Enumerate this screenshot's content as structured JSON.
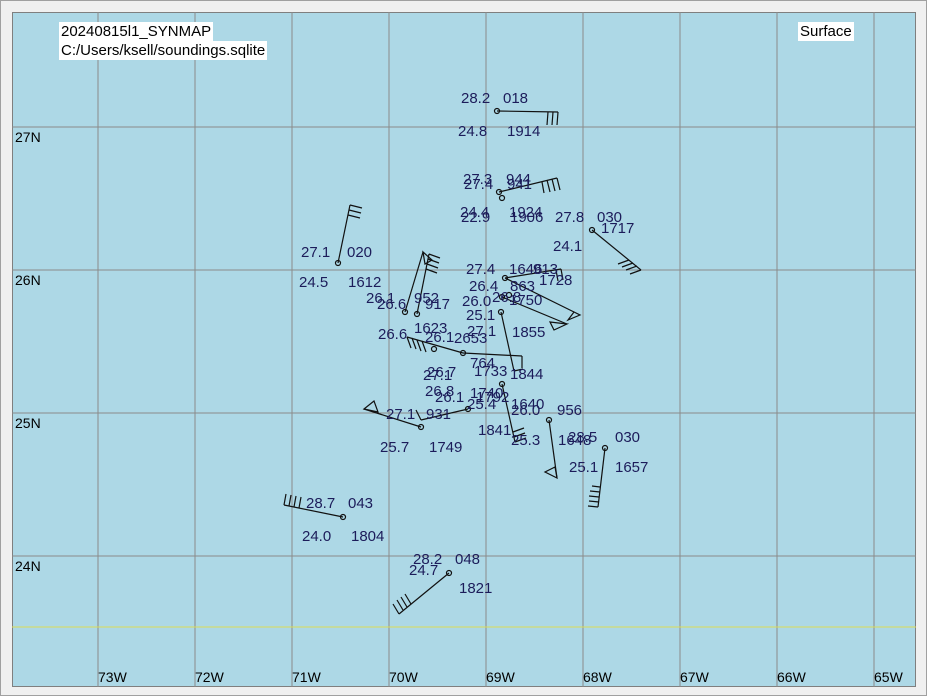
{
  "header": {
    "run_title": "20240815l1_SYNMAP",
    "source": "C:/Users/ksell/soundings.sqlite",
    "level": "Surface"
  },
  "map": {
    "lon_labels": [
      "73W",
      "72W",
      "71W",
      "70W",
      "69W",
      "68W",
      "67W",
      "66W",
      "65W"
    ],
    "lat_labels": [
      "27N",
      "26N",
      "25N",
      "24N"
    ],
    "colors": {
      "background": "#add8e6",
      "grid": "#8a8a8a",
      "equator_line": "#dcdc55",
      "text": "#1c1c5a"
    }
  },
  "stations": [
    {
      "name": "s1",
      "temp": "28.2",
      "pres": "018",
      "dew": "24.8",
      "time": "1914"
    },
    {
      "name": "s2",
      "temp": "27.3",
      "pres": "944",
      "dew": "24.4",
      "time": "1924"
    },
    {
      "name": "s3",
      "temp": "27.4",
      "pres": "941",
      "dew": "22.9",
      "time": "1906"
    },
    {
      "name": "s4",
      "temp": "27.8",
      "pres": "030",
      "dew": "24.1",
      "time": "1717"
    },
    {
      "name": "s5",
      "temp": "27.1",
      "pres": "020",
      "dew": "24.5",
      "time": "1612"
    },
    {
      "name": "s6",
      "temp": "27.4",
      "pres": "913",
      "dew": "26.4",
      "time": "1728"
    },
    {
      "name": "s7",
      "temp": "26.1",
      "pres": "952",
      "dew": "26.6",
      "time": "917"
    },
    {
      "name": "s8",
      "temp": "26.6",
      "pres": "1623",
      "dew": "25.1",
      "time": "1855"
    },
    {
      "name": "s9",
      "temp": "26.8",
      "pres": "1740",
      "dew": "26.1",
      "time": "1640"
    },
    {
      "name": "s10",
      "temp": "27.1",
      "pres": "931",
      "dew": "25.7",
      "time": "1749"
    },
    {
      "name": "s11",
      "temp": "26.0",
      "pres": "956",
      "dew": "25.3",
      "time": "1841"
    },
    {
      "name": "s12",
      "temp": "28.5",
      "pres": "030",
      "dew": "25.1",
      "time": "1657"
    },
    {
      "name": "s13",
      "temp": "28.7",
      "pres": "043",
      "dew": "24.0",
      "time": "1804"
    },
    {
      "name": "s14",
      "temp": "28.2",
      "pres": "048",
      "dew": "24.7",
      "time": "1821"
    }
  ],
  "overlap_labels": [
    {
      "name": "o1",
      "text": "1646"
    },
    {
      "name": "o2",
      "text": "863"
    },
    {
      "name": "o3",
      "text": "26.0"
    },
    {
      "name": "o4",
      "text": "1750"
    },
    {
      "name": "o5",
      "text": "26.8"
    },
    {
      "name": "o6",
      "text": "27.1"
    },
    {
      "name": "o7",
      "text": "764"
    },
    {
      "name": "o8",
      "text": "1844"
    },
    {
      "name": "o9",
      "text": "27.1"
    },
    {
      "name": "o10",
      "text": "1733"
    },
    {
      "name": "o11",
      "text": "25.4"
    },
    {
      "name": "o12",
      "text": "1792"
    },
    {
      "name": "o13",
      "text": "1648"
    },
    {
      "name": "o14",
      "text": "26.1"
    },
    {
      "name": "o15",
      "text": "2653"
    },
    {
      "name": "o16",
      "text": "26.7"
    }
  ]
}
